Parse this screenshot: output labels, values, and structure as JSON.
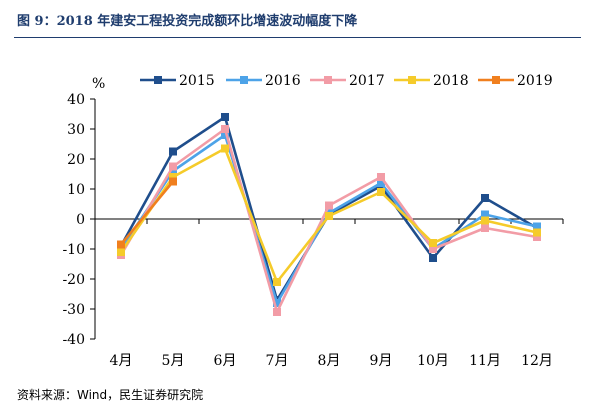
{
  "figure": {
    "title": "图 9：2018 年建安工程投资完成额环比增速波动幅度下降",
    "source": "资料来源：Wind，民生证券研究院"
  },
  "chart_data": {
    "type": "line",
    "ylabel": "%",
    "xlabel": "",
    "categories": [
      "4月",
      "5月",
      "6月",
      "7月",
      "8月",
      "9月",
      "10月",
      "11月",
      "12月"
    ],
    "ylim": [
      -40,
      40
    ],
    "yticks": [
      40,
      30,
      20,
      10,
      0,
      -10,
      -20,
      -30,
      -40
    ],
    "grid": false,
    "legend_position": "top",
    "series": [
      {
        "name": "2015",
        "color": "#1f4e8c",
        "values": [
          -9,
          22.5,
          34,
          -27,
          1.5,
          11,
          -13,
          7,
          -3
        ]
      },
      {
        "name": "2016",
        "color": "#4da3e8",
        "values": [
          -10,
          16,
          28,
          -28,
          2,
          12,
          -10,
          1.5,
          -2.5
        ]
      },
      {
        "name": "2017",
        "color": "#f29ca6",
        "values": [
          -12,
          17.5,
          30,
          -31,
          4.5,
          14,
          -10,
          -3,
          -6
        ]
      },
      {
        "name": "2018",
        "color": "#f5cb2a",
        "values": [
          -11,
          14,
          23.5,
          -21,
          1,
          9,
          -8,
          -0.5,
          -4.5
        ]
      },
      {
        "name": "2019",
        "color": "#f07f1e",
        "values": [
          -8.5,
          12.5,
          null,
          null,
          null,
          null,
          null,
          null,
          null
        ]
      }
    ]
  }
}
